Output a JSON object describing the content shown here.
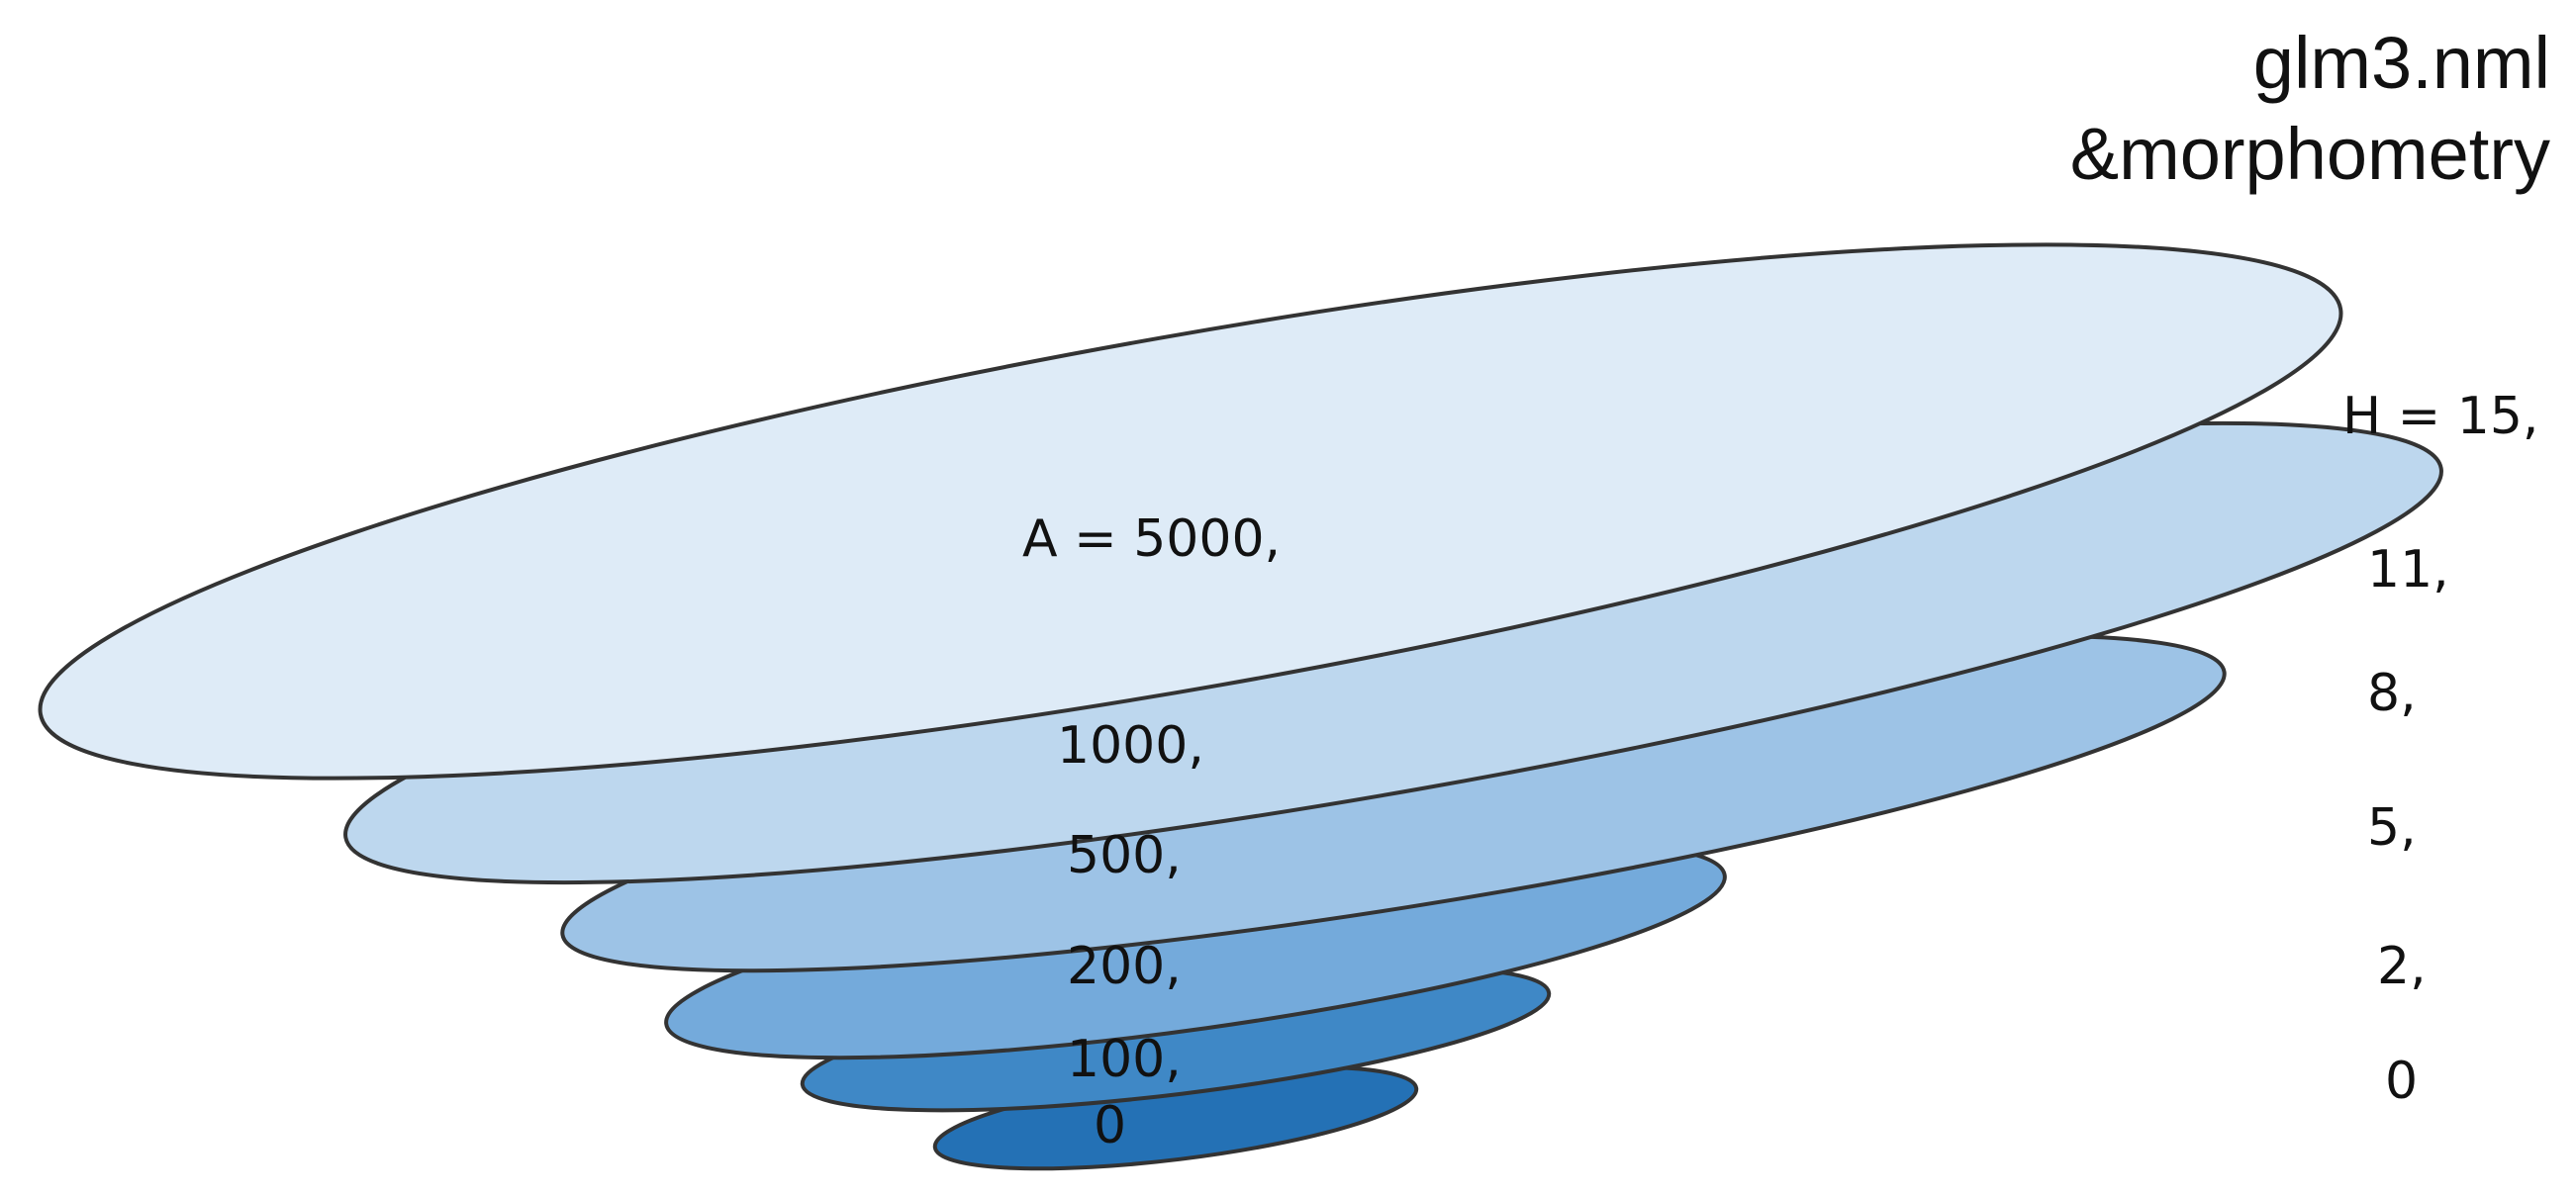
{
  "title": {
    "line1": "glm3.nml",
    "line2": "&morphometry"
  },
  "colors": {
    "stroke": "#333333",
    "layer_0": "#2471b5",
    "layer_100": "#3f88c6",
    "layer_200": "#74aadb",
    "layer_500": "#9dc3e6",
    "layer_1000": "#bdd7ee",
    "layer_5000": "#deebf7"
  },
  "layers": [
    {
      "area_label": "0",
      "height_label": "0",
      "color": "#2471b5"
    },
    {
      "area_label": "100,",
      "height_label": "2,",
      "color": "#3f88c6"
    },
    {
      "area_label": "200,",
      "height_label": "5,",
      "color": "#74aadb"
    },
    {
      "area_label": "500,",
      "height_label": "8,",
      "color": "#9dc3e6"
    },
    {
      "area_label": "1000,",
      "height_label": "11,",
      "color": "#bdd7ee"
    },
    {
      "area_label": "A = 5000,",
      "height_label": "H = 15,",
      "color": "#deebf7"
    }
  ]
}
